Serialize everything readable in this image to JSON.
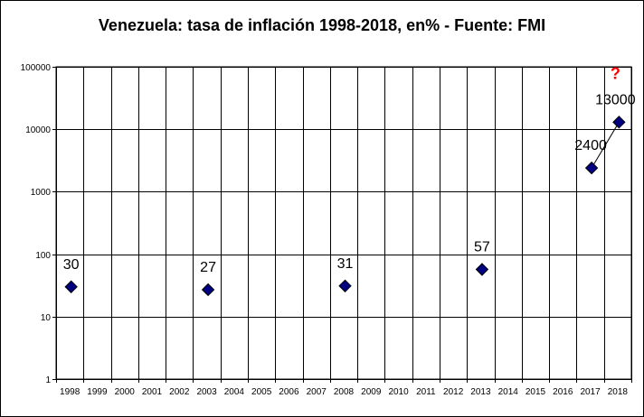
{
  "chart_data": {
    "type": "scatter",
    "title": "Venezuela: tasa de inflación 1998-2018, en% - Fuente: FMI",
    "xlabel": "",
    "ylabel": "",
    "y_scale": "log",
    "ylim": [
      1,
      100000
    ],
    "y_ticks": [
      "1",
      "10",
      "100",
      "1000",
      "10000",
      "100000"
    ],
    "y_tick_values": [
      1,
      10,
      100,
      1000,
      10000,
      100000
    ],
    "categories": [
      "1998",
      "1999",
      "2000",
      "2001",
      "2002",
      "2003",
      "2004",
      "2005",
      "2006",
      "2007",
      "2008",
      "2009",
      "2010",
      "2011",
      "2012",
      "2013",
      "2014",
      "2015",
      "2016",
      "2017",
      "2018"
    ],
    "grid": true,
    "marker": "diamond",
    "marker_color": "#000080",
    "points": [
      {
        "x": "1998",
        "y": 30,
        "label": "30"
      },
      {
        "x": "2003",
        "y": 27,
        "label": "27"
      },
      {
        "x": "2008",
        "y": 31,
        "label": "31"
      },
      {
        "x": "2013",
        "y": 57,
        "label": "57"
      },
      {
        "x": "2017",
        "y": 2400,
        "label": "2400"
      },
      {
        "x": "2018",
        "y": 13000,
        "label": "13000"
      }
    ],
    "annotation": {
      "text": "?",
      "color": "#ff0000"
    }
  }
}
